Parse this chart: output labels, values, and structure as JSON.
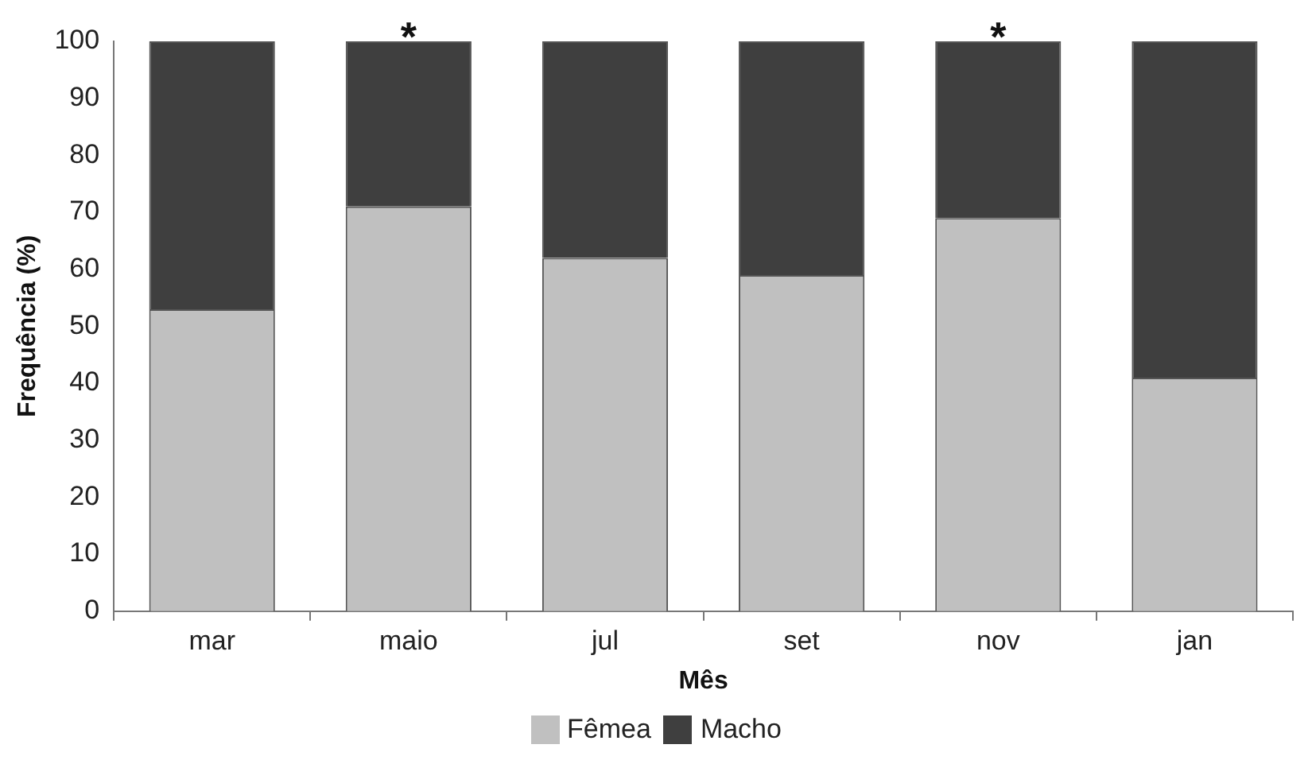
{
  "chart_data": {
    "type": "bar",
    "stacked": true,
    "xlabel": "Mês",
    "ylabel": "Frequência (%)",
    "categories": [
      "mar",
      "maio",
      "jul",
      "set",
      "nov",
      "jan"
    ],
    "series": [
      {
        "name": "Fêmea",
        "color": "#c0c0c0",
        "values": [
          53,
          71,
          62,
          59,
          69,
          41
        ]
      },
      {
        "name": "Macho",
        "color": "#3f3f3f",
        "values": [
          47,
          29,
          38,
          41,
          31,
          59
        ]
      }
    ],
    "ylim": [
      0,
      100
    ],
    "yticks": [
      0,
      10,
      20,
      30,
      40,
      50,
      60,
      70,
      80,
      90,
      100
    ],
    "grid": false,
    "legend": "bottom",
    "annotations": [
      {
        "text": "*",
        "x": "maio",
        "y": 100
      },
      {
        "text": "*",
        "x": "nov",
        "y": 100
      }
    ]
  }
}
